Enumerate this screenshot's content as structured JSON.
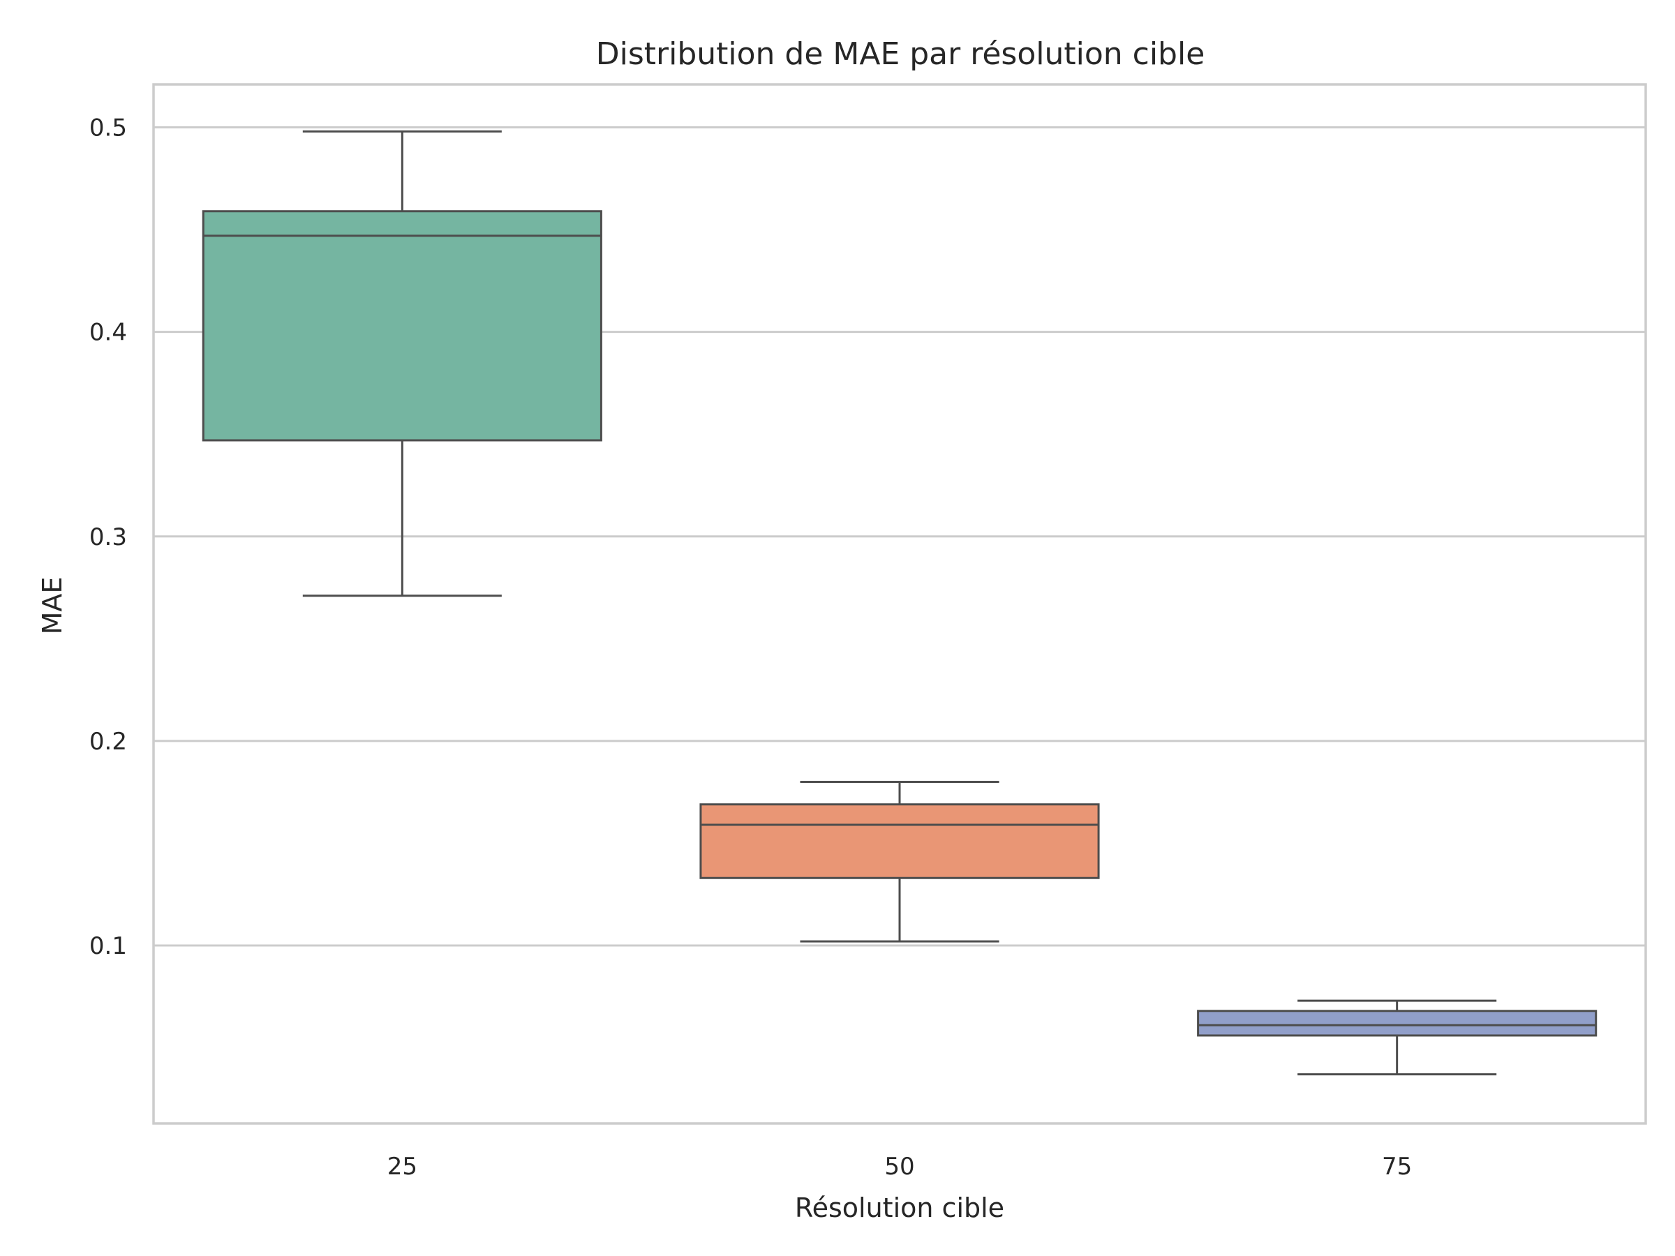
{
  "chart_data": {
    "type": "box",
    "title": "Distribution de MAE par résolution cible",
    "xlabel": "Résolution cible",
    "ylabel": "MAE",
    "ylim": [
      0.013,
      0.521
    ],
    "yticks": [
      0.1,
      0.2,
      0.3,
      0.4,
      0.5
    ],
    "ytick_labels": [
      "0.1",
      "0.2",
      "0.3",
      "0.4",
      "0.5"
    ],
    "grid": "horizontal",
    "categories": [
      "25",
      "50",
      "75"
    ],
    "boxes": [
      {
        "category": "25",
        "min": 0.271,
        "q1": 0.347,
        "median": 0.447,
        "q3": 0.459,
        "max": 0.498,
        "color": "#75b5a1"
      },
      {
        "category": "50",
        "min": 0.102,
        "q1": 0.133,
        "median": 0.159,
        "q3": 0.169,
        "max": 0.18,
        "color": "#e99675"
      },
      {
        "category": "75",
        "min": 0.037,
        "q1": 0.056,
        "median": 0.061,
        "q3": 0.068,
        "max": 0.073,
        "color": "#919fca"
      }
    ]
  }
}
